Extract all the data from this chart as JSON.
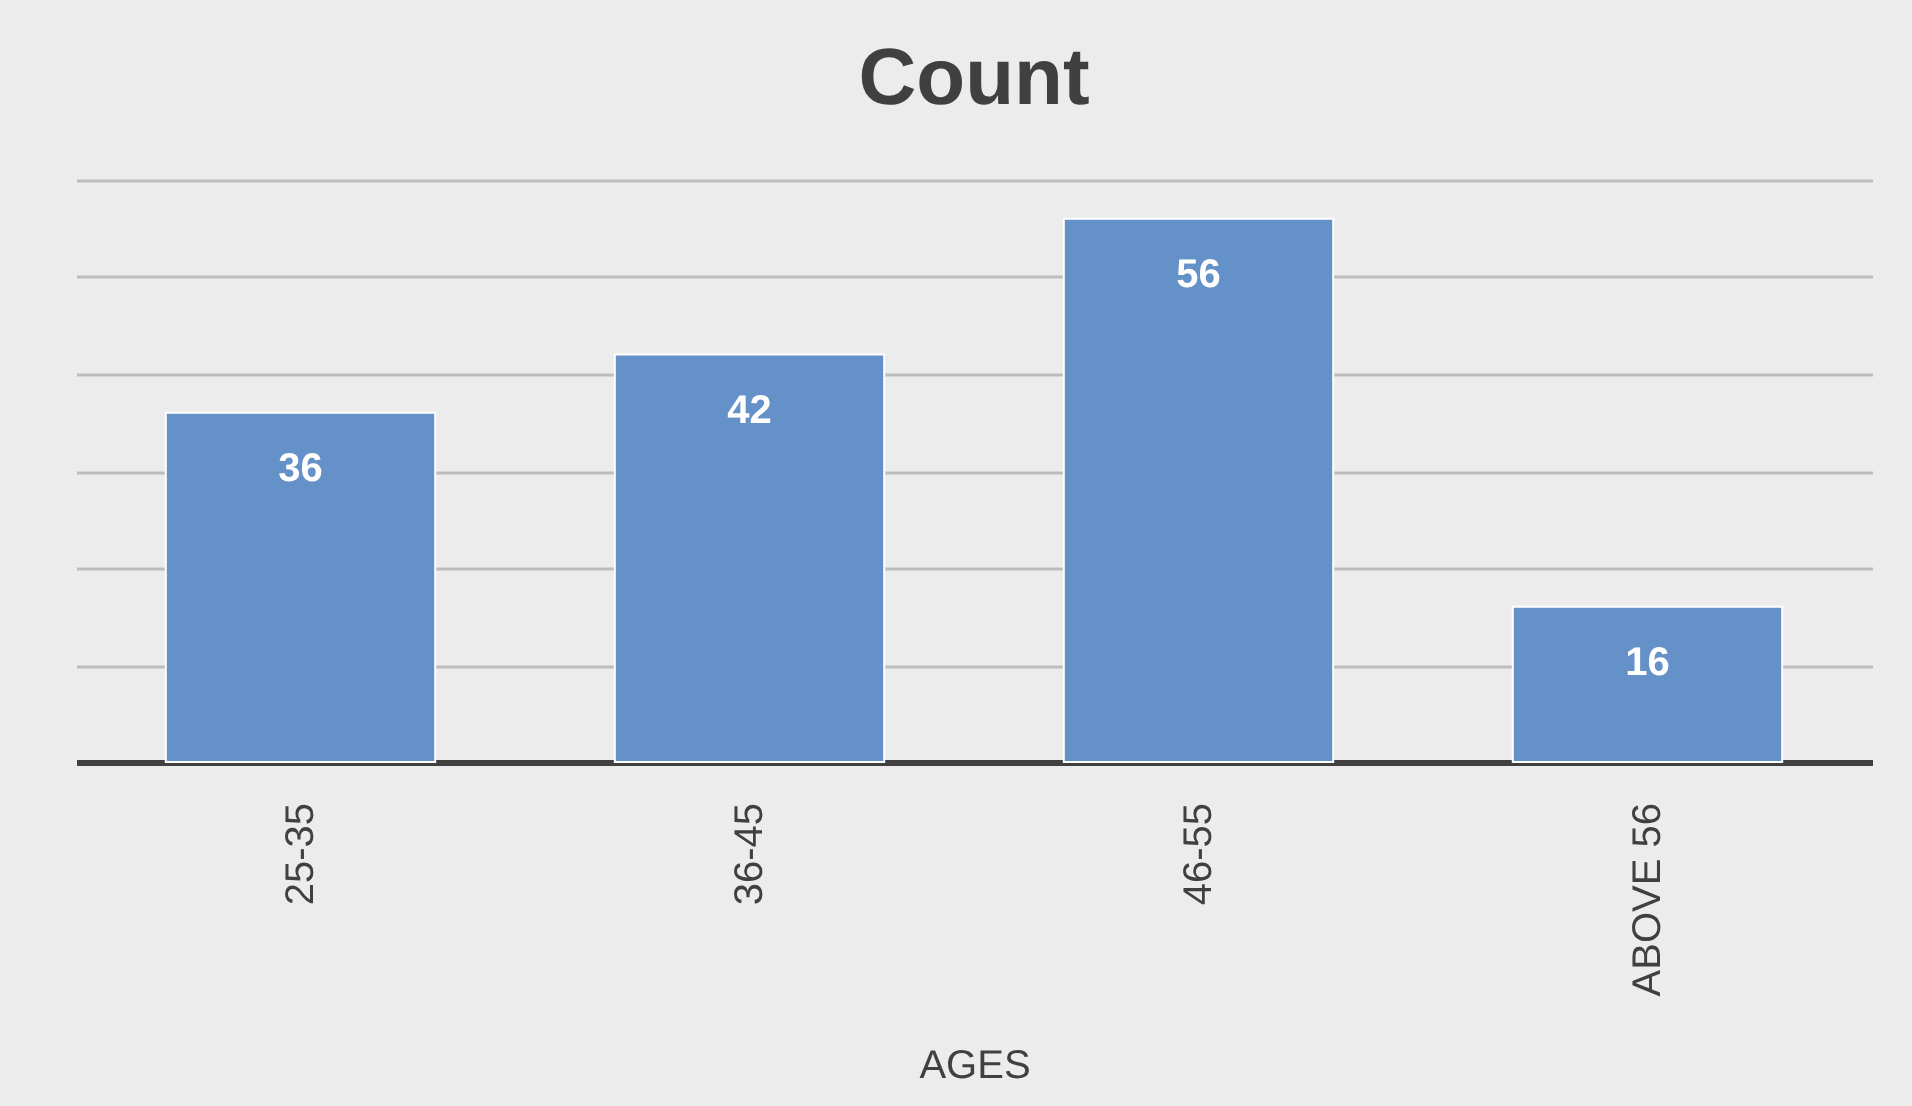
{
  "chart_data": {
    "type": "bar",
    "title": "Count",
    "xlabel": "AGES",
    "categories": [
      "25-35",
      "36-45",
      "46-55",
      "ABOVE 56"
    ],
    "values": [
      36,
      42,
      56,
      16
    ],
    "color": "#6591c9",
    "data_labels": true,
    "ylim": [
      0,
      60
    ],
    "yticks": [
      {
        "value": 0,
        "label": null
      },
      {
        "value": 10,
        "label": null
      },
      {
        "value": 20,
        "label": null
      },
      {
        "value": 30,
        "label": null
      },
      {
        "value": 40,
        "label": null
      },
      {
        "value": 50,
        "label": null
      },
      {
        "value": 60,
        "label": null
      }
    ],
    "grid": "y",
    "tick_labels": "x"
  }
}
